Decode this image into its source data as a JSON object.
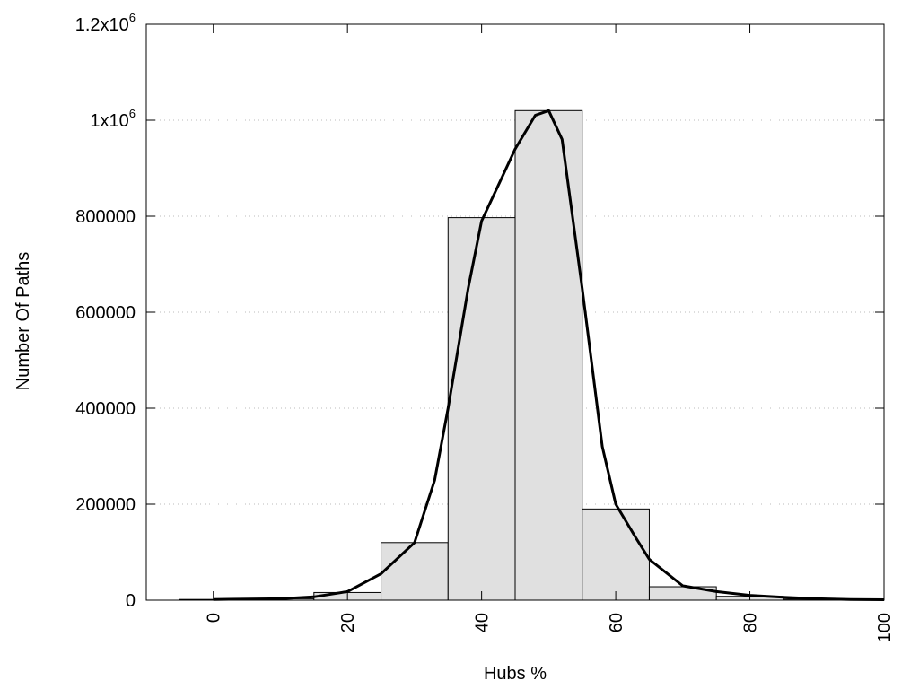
{
  "chart_data": {
    "type": "bar",
    "title": "",
    "xlabel": "Hubs %",
    "ylabel": "Number Of Paths",
    "xlim": [
      -10,
      100
    ],
    "ylim": [
      0,
      1200000
    ],
    "x_ticks": [
      0,
      20,
      40,
      60,
      80,
      100
    ],
    "y_ticks": [
      {
        "value": 0,
        "label": "0"
      },
      {
        "value": 200000,
        "label": "200000"
      },
      {
        "value": 400000,
        "label": "400000"
      },
      {
        "value": 600000,
        "label": "600000"
      },
      {
        "value": 800000,
        "label": "800000"
      },
      {
        "value": 1000000,
        "label": "1x10",
        "sup": "6"
      },
      {
        "value": 1200000,
        "label": "1.2x10",
        "sup": "6"
      }
    ],
    "grid": "horizontal-dotted",
    "bar_color": "#e0e0e0",
    "bars": [
      {
        "from": -5,
        "to": 5,
        "value": 1500
      },
      {
        "from": 5,
        "to": 15,
        "value": 3000
      },
      {
        "from": 15,
        "to": 25,
        "value": 16000
      },
      {
        "from": 25,
        "to": 35,
        "value": 120000
      },
      {
        "from": 35,
        "to": 45,
        "value": 797000
      },
      {
        "from": 45,
        "to": 55,
        "value": 1020000
      },
      {
        "from": 55,
        "to": 65,
        "value": 190000
      },
      {
        "from": 65,
        "to": 75,
        "value": 28000
      },
      {
        "from": 75,
        "to": 85,
        "value": 8000
      },
      {
        "from": 85,
        "to": 95,
        "value": 2000
      }
    ],
    "curve": {
      "x": [
        0,
        10,
        15,
        20,
        25,
        30,
        33,
        35,
        38,
        40,
        43,
        45,
        48,
        50,
        52,
        55,
        58,
        60,
        63,
        65,
        70,
        75,
        80,
        85,
        90,
        95,
        100
      ],
      "y": [
        1500,
        3000,
        7000,
        18000,
        55000,
        120000,
        250000,
        400000,
        650000,
        790000,
        880000,
        940000,
        1010000,
        1020000,
        960000,
        650000,
        320000,
        200000,
        130000,
        85000,
        30000,
        18000,
        10000,
        6000,
        3000,
        1500,
        1000
      ]
    }
  }
}
